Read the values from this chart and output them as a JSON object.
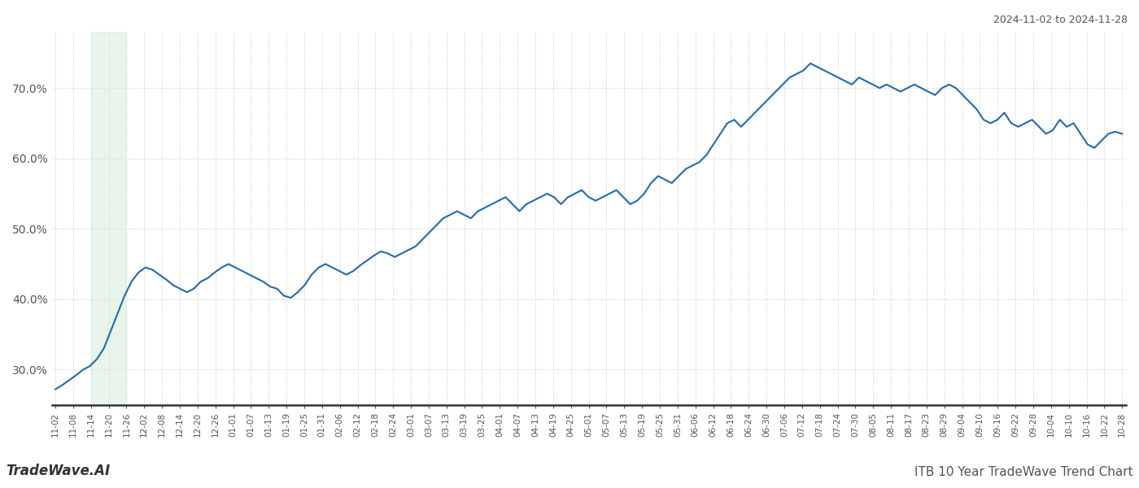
{
  "title_top_right": "2024-11-02 to 2024-11-28",
  "title_bottom_right": "ITB 10 Year TradeWave Trend Chart",
  "title_bottom_left": "TradeWave.AI",
  "line_color": "#1f6bb0",
  "line_width": 1.5,
  "shade_color": "#d4edda",
  "shade_alpha": 0.55,
  "background_color": "#ffffff",
  "grid_color": "#bbbbbb",
  "grid_style": "dotted",
  "ylim": [
    25.0,
    78.0
  ],
  "yticks": [
    30.0,
    40.0,
    50.0,
    60.0,
    70.0
  ],
  "xtick_labels": [
    "11-02",
    "11-08",
    "11-14",
    "11-20",
    "11-26",
    "12-02",
    "12-08",
    "12-14",
    "12-20",
    "12-26",
    "01-01",
    "01-07",
    "01-13",
    "01-19",
    "01-25",
    "01-31",
    "02-06",
    "02-12",
    "02-18",
    "02-24",
    "03-01",
    "03-07",
    "03-13",
    "03-19",
    "03-25",
    "04-01",
    "04-07",
    "04-13",
    "04-19",
    "04-25",
    "05-01",
    "05-07",
    "05-13",
    "05-19",
    "05-25",
    "05-31",
    "06-06",
    "06-12",
    "06-18",
    "06-24",
    "06-30",
    "07-06",
    "07-12",
    "07-18",
    "07-24",
    "07-30",
    "08-05",
    "08-11",
    "08-17",
    "08-23",
    "08-29",
    "09-04",
    "09-10",
    "09-16",
    "09-22",
    "09-28",
    "10-04",
    "10-10",
    "10-16",
    "10-22",
    "10-28"
  ],
  "shade_label_start": "11-14",
  "shade_label_end": "11-26",
  "values": [
    27.2,
    27.8,
    28.5,
    29.2,
    30.0,
    30.5,
    31.5,
    33.0,
    35.5,
    38.0,
    40.5,
    42.5,
    43.8,
    44.5,
    44.2,
    43.5,
    42.8,
    42.0,
    41.5,
    41.0,
    41.5,
    42.5,
    43.0,
    43.8,
    44.5,
    45.0,
    44.5,
    44.0,
    43.5,
    43.0,
    42.5,
    41.8,
    41.5,
    40.5,
    40.2,
    41.0,
    42.0,
    43.5,
    44.5,
    45.0,
    44.5,
    44.0,
    43.5,
    44.0,
    44.8,
    45.5,
    46.2,
    46.8,
    46.5,
    46.0,
    46.5,
    47.0,
    47.5,
    48.5,
    49.5,
    50.5,
    51.5,
    52.0,
    52.5,
    52.0,
    51.5,
    52.5,
    53.0,
    53.5,
    54.0,
    54.5,
    53.5,
    52.5,
    53.5,
    54.0,
    54.5,
    55.0,
    54.5,
    53.5,
    54.5,
    55.0,
    55.5,
    54.5,
    54.0,
    54.5,
    55.0,
    55.5,
    54.5,
    53.5,
    54.0,
    55.0,
    56.5,
    57.5,
    57.0,
    56.5,
    57.5,
    58.5,
    59.0,
    59.5,
    60.5,
    62.0,
    63.5,
    65.0,
    65.5,
    64.5,
    65.5,
    66.5,
    67.5,
    68.5,
    69.5,
    70.5,
    71.5,
    72.0,
    72.5,
    73.5,
    73.0,
    72.5,
    72.0,
    71.5,
    71.0,
    70.5,
    71.5,
    71.0,
    70.5,
    70.0,
    70.5,
    70.0,
    69.5,
    70.0,
    70.5,
    70.0,
    69.5,
    69.0,
    70.0,
    70.5,
    70.0,
    69.0,
    68.0,
    67.0,
    65.5,
    65.0,
    65.5,
    66.5,
    65.0,
    64.5,
    65.0,
    65.5,
    64.5,
    63.5,
    64.0,
    65.5,
    64.5,
    65.0,
    63.5,
    62.0,
    61.5,
    62.5,
    63.5,
    63.8,
    63.5
  ]
}
